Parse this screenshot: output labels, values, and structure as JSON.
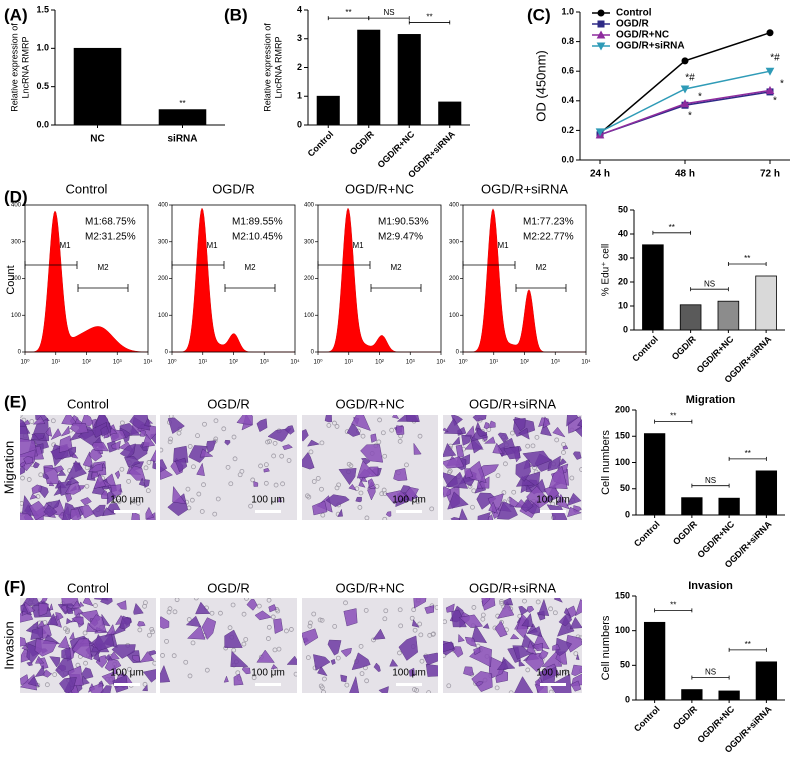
{
  "panel_labels": [
    "(A)",
    "(B)",
    "(C)",
    "(D)",
    "(E)",
    "(F)"
  ],
  "conditions": [
    "Control",
    "OGD/R",
    "OGD/R+NC",
    "OGD/R+siRNA"
  ],
  "flow_cytometry": {
    "y_label": "Count",
    "ylim": [
      0,
      400
    ],
    "yticks": [
      0,
      100,
      200,
      300,
      400
    ],
    "xtick_labels": [
      "10⁰",
      "10¹",
      "10²",
      "10³",
      "10⁴"
    ],
    "gates": [
      "M1",
      "M2"
    ],
    "gate_percentages": [
      [
        "M1:68.75%",
        "M2:31.25%"
      ],
      [
        "M1:89.55%",
        "M2:10.45%"
      ],
      [
        "M1:90.53%",
        "M2:9.47%"
      ],
      [
        "M1:77.23%",
        "M2:22.77%"
      ]
    ]
  },
  "micrographs": {
    "row_labels": [
      "Migration",
      "Invasion"
    ],
    "scale_bar": "100 μm"
  },
  "chart_data": [
    {
      "type": "bar",
      "y_label": [
        "Relative expression of",
        "LncRNA RMRP"
      ],
      "categories": [
        "NC",
        "siRNA"
      ],
      "values": [
        1.0,
        0.2
      ],
      "colors": [
        "#000000",
        "#000000"
      ],
      "ylim": [
        0,
        1.5
      ],
      "yticks": [
        {
          "value": 0,
          "label": "0.0"
        },
        0.5,
        {
          "value": 1,
          "label": "1.0"
        },
        1.5
      ],
      "annotation": "**"
    },
    {
      "type": "bar",
      "y_label": [
        "Relative expression of",
        "LncRNA RMRP"
      ],
      "categories": [
        "Control",
        "OGD/R",
        "OGD/R+NC",
        "OGD/R+siRNA"
      ],
      "values": [
        1.0,
        3.3,
        3.15,
        0.8
      ],
      "colors": [
        "#000000",
        "#000000",
        "#000000",
        "#000000"
      ],
      "ylim": [
        0,
        4
      ],
      "yticks": [
        0,
        1,
        2,
        3,
        4
      ],
      "significance": [
        "**",
        "NS",
        "**"
      ]
    },
    {
      "type": "line",
      "y_label": "OD (450nm)",
      "categories": [
        "24 h",
        "48 h",
        "72 h"
      ],
      "series": [
        {
          "name": "Control",
          "color": "#000000",
          "marker": "circle",
          "values": [
            0.18,
            0.67,
            0.86
          ]
        },
        {
          "name": "OGD/R",
          "color": "#2e2a86",
          "marker": "square",
          "values": [
            0.17,
            0.37,
            0.46
          ]
        },
        {
          "name": "OGD/R+NC",
          "color": "#8e2c9e",
          "marker": "triangle",
          "values": [
            0.17,
            0.38,
            0.47
          ]
        },
        {
          "name": "OGD/R+siRNA",
          "color": "#2f9bb7",
          "marker": "triangle-down",
          "values": [
            0.19,
            0.48,
            0.6
          ]
        }
      ],
      "ylim": [
        0,
        1
      ],
      "yticks": [
        {
          "value": 0,
          "label": "0.0"
        },
        0.2,
        0.4,
        0.6,
        0.8,
        {
          "value": 1,
          "label": "1.0"
        }
      ],
      "annotations": [
        "*#",
        "*",
        "*",
        "*#",
        "*",
        "*"
      ]
    },
    {
      "type": "bar",
      "y_label": "% Edu⁺ cell",
      "categories": [
        "Control",
        "OGD/R",
        "OGD/R+NC",
        "OGD/R+siRNA"
      ],
      "values": [
        35.5,
        10.5,
        12,
        22.5
      ],
      "colors": [
        "#000000",
        "#5a5a5a",
        "#8c8c8c",
        "#d9d9d9"
      ],
      "ylim": [
        0,
        50
      ],
      "yticks": [
        0,
        10,
        20,
        30,
        40,
        50
      ],
      "significance": [
        "**",
        "NS",
        "**"
      ]
    },
    {
      "type": "bar",
      "title": "Migration",
      "y_label": "Cell numbers",
      "categories": [
        "Control",
        "OGD/R",
        "OGD/R+NC",
        "OGD/R+siRNA"
      ],
      "values": [
        155,
        33,
        32,
        84
      ],
      "colors": [
        "#000000",
        "#000000",
        "#000000",
        "#000000"
      ],
      "ylim": [
        0,
        200
      ],
      "yticks": [
        0,
        50,
        100,
        150,
        200
      ],
      "significance": [
        "**",
        "NS",
        "**"
      ]
    },
    {
      "type": "bar",
      "title": "Invasion",
      "y_label": "Cell numbers",
      "categories": [
        "Control",
        "OGD/R",
        "OGD/R+NC",
        "OGD/R+siRNA"
      ],
      "values": [
        112,
        15,
        13,
        55
      ],
      "colors": [
        "#000000",
        "#000000",
        "#000000",
        "#000000"
      ],
      "ylim": [
        0,
        150
      ],
      "yticks": [
        0,
        50,
        100,
        150
      ],
      "significance": [
        "**",
        "NS",
        "**"
      ]
    }
  ]
}
